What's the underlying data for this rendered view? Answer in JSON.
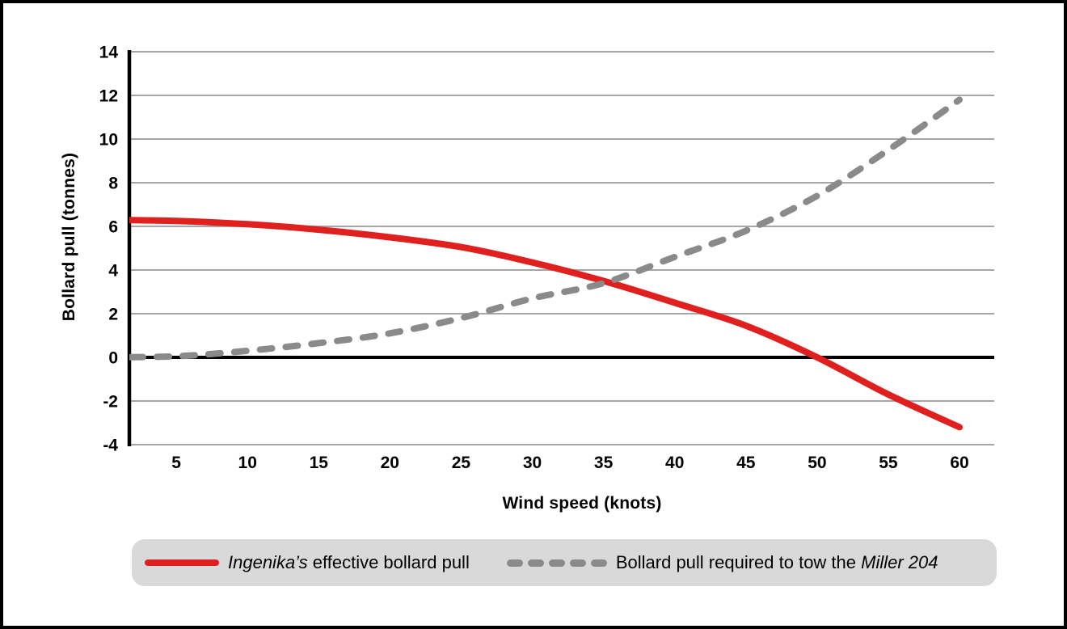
{
  "chart_data": {
    "type": "line",
    "title": "",
    "xlabel": "Wind speed (knots)",
    "ylabel": "Bollard pull (tonnes)",
    "x": [
      0,
      5,
      10,
      15,
      20,
      25,
      30,
      35,
      40,
      45,
      50,
      55,
      60
    ],
    "xticks": [
      5,
      10,
      15,
      20,
      25,
      30,
      35,
      40,
      45,
      50,
      55,
      60
    ],
    "yticks": [
      14,
      12,
      10,
      8,
      6,
      4,
      2,
      0,
      -2,
      -4
    ],
    "ylim": [
      -4,
      14
    ],
    "xlim": [
      0,
      62.5
    ],
    "grid": "horizontal",
    "legend_position": "bottom",
    "series": [
      {
        "name": "Ingenika’s effective bollard pull",
        "style": "solid",
        "color": "#e0201f",
        "values": [
          6.3,
          6.25,
          6.1,
          5.85,
          5.5,
          5.05,
          4.35,
          3.5,
          2.5,
          1.45,
          0,
          -1.7,
          -3.2
        ]
      },
      {
        "name": "Bollard pull required to tow the Miller 204",
        "style": "dashed",
        "color": "#8a8a8a",
        "values": [
          0,
          0.05,
          0.3,
          0.65,
          1.1,
          1.8,
          2.7,
          3.4,
          4.6,
          5.8,
          7.4,
          9.5,
          11.8
        ]
      }
    ]
  },
  "legend": {
    "background": "#d9d9d9",
    "entries": [
      {
        "italic": "Ingenika’s",
        "regular": " effective bollard pull"
      },
      {
        "regular": "Bollard pull required to tow the ",
        "italic": "Miller 204"
      }
    ]
  },
  "colors": {
    "frame_border": "#000000",
    "background": "#ffffff",
    "gridline": "#a6a6a6",
    "axis_line": "#000000",
    "zero_line": "#000000",
    "tick_label": "#000000"
  }
}
